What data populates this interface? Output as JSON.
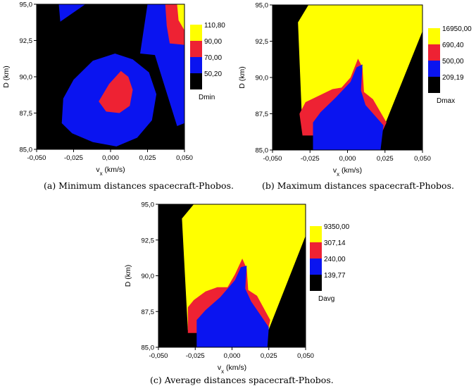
{
  "chart_data": [
    {
      "type": "heatmap",
      "title": "",
      "xlabel": "vx (km/s)",
      "xlabel_main": "v",
      "xlabel_sub": "x",
      "xlabel_unit": " (km/s)",
      "ylabel": "D (km)",
      "xlim": [
        -0.05,
        0.05
      ],
      "ylim": [
        85.0,
        95.0
      ],
      "xticks": [
        "-0,050",
        "-0,025",
        "0,000",
        "0,025",
        "0,050"
      ],
      "yticks": [
        "85,0",
        "87,5",
        "90,0",
        "92,5",
        "95,0"
      ],
      "legend_title": "Dmin",
      "levels": [
        {
          "label": "110,80",
          "color": "#ffff00"
        },
        {
          "label": "90,00",
          "color": "#ee2233"
        },
        {
          "label": "70,00",
          "color": "#0a14f0"
        },
        {
          "label": "50,20",
          "color": "#000000"
        }
      ],
      "regions": [
        {
          "color": "#000000",
          "points": [
            [
              -0.05,
              85
            ],
            [
              0.05,
              85
            ],
            [
              0.05,
              95
            ],
            [
              -0.05,
              95
            ]
          ]
        },
        {
          "color": "#0a14f0",
          "points": [
            [
              -0.034,
              93.8
            ],
            [
              -0.017,
              95
            ],
            [
              -0.035,
              95
            ]
          ]
        },
        {
          "color": "#0a14f0",
          "points": [
            [
              0.025,
              95
            ],
            [
              0.05,
              95
            ],
            [
              0.05,
              86.8
            ],
            [
              0.045,
              86.6
            ],
            [
              0.03,
              91.5
            ],
            [
              0.02,
              91.6
            ]
          ]
        },
        {
          "color": "#ee2233",
          "points": [
            [
              0.037,
              95
            ],
            [
              0.05,
              95
            ],
            [
              0.05,
              92.2
            ],
            [
              0.04,
              92.3
            ],
            [
              0.038,
              93.5
            ]
          ]
        },
        {
          "color": "#ffff00",
          "points": [
            [
              0.045,
              95
            ],
            [
              0.05,
              95
            ],
            [
              0.05,
              93.2
            ],
            [
              0.046,
              93.9
            ]
          ]
        },
        {
          "color": "#0a14f0",
          "points": [
            [
              -0.032,
              88.5
            ],
            [
              -0.033,
              86.8
            ],
            [
              -0.026,
              86.1
            ],
            [
              -0.012,
              85.5
            ],
            [
              0.004,
              85.2
            ],
            [
              0.018,
              85.8
            ],
            [
              0.028,
              87.0
            ],
            [
              0.031,
              88.8
            ],
            [
              0.026,
              90.3
            ],
            [
              0.015,
              91.2
            ],
            [
              0.003,
              91.6
            ],
            [
              -0.012,
              91.1
            ],
            [
              -0.025,
              89.8
            ]
          ]
        },
        {
          "color": "#ee2233",
          "points": [
            [
              -0.008,
              88.3
            ],
            [
              -0.003,
              87.6
            ],
            [
              0.006,
              87.5
            ],
            [
              0.013,
              88.0
            ],
            [
              0.015,
              89.1
            ],
            [
              0.012,
              90.0
            ],
            [
              0.007,
              90.4
            ],
            [
              -0.001,
              89.5
            ]
          ]
        }
      ]
    },
    {
      "type": "heatmap",
      "title": "",
      "xlabel": "vx (km/s)",
      "xlabel_main": "v",
      "xlabel_sub": "x",
      "xlabel_unit": " (km/s)",
      "ylabel": "D (km)",
      "xlim": [
        -0.05,
        0.05
      ],
      "ylim": [
        85.0,
        95.0
      ],
      "xticks": [
        "-0,050",
        "-0,025",
        "0,000",
        "0,025",
        "0,050"
      ],
      "yticks": [
        "85,0",
        "87,5",
        "90,0",
        "92,5",
        "95,0"
      ],
      "legend_title": "Dmax",
      "levels": [
        {
          "label": "16950,00",
          "color": "#ffff00"
        },
        {
          "label": "690,40",
          "color": "#ee2233"
        },
        {
          "label": "500,00",
          "color": "#0a14f0"
        },
        {
          "label": "209,19",
          "color": "#000000"
        }
      ],
      "regions": [
        {
          "color": "#000000",
          "points": [
            [
              -0.05,
              85
            ],
            [
              0.05,
              85
            ],
            [
              0.05,
              95
            ],
            [
              -0.05,
              95
            ]
          ]
        },
        {
          "color": "#ffff00",
          "points": [
            [
              -0.033,
              93.8
            ],
            [
              -0.026,
              95
            ],
            [
              0.05,
              95
            ],
            [
              0.05,
              93.2
            ],
            [
              0.022,
              86.0
            ],
            [
              -0.03,
              86.2
            ]
          ]
        },
        {
          "color": "#ee2233",
          "points": [
            [
              -0.032,
              87.5
            ],
            [
              -0.028,
              88.3
            ],
            [
              -0.018,
              88.8
            ],
            [
              -0.01,
              89.2
            ],
            [
              -0.004,
              89.3
            ],
            [
              0.002,
              90.0
            ],
            [
              0.007,
              91.3
            ],
            [
              0.01,
              90.7
            ],
            [
              0.011,
              89.0
            ],
            [
              0.017,
              88.5
            ],
            [
              0.026,
              86.9
            ],
            [
              0.022,
              86.0
            ],
            [
              -0.03,
              86.0
            ]
          ]
        },
        {
          "color": "#0a14f0",
          "points": [
            [
              -0.023,
              85.0
            ],
            [
              0.022,
              85.0
            ],
            [
              0.024,
              86.7
            ],
            [
              0.012,
              88.1
            ],
            [
              0.009,
              89.1
            ],
            [
              0.01,
              90.9
            ],
            [
              0.006,
              90.7
            ],
            [
              0.002,
              89.7
            ],
            [
              -0.008,
              88.6
            ],
            [
              -0.018,
              87.6
            ],
            [
              -0.023,
              86.9
            ]
          ]
        }
      ]
    },
    {
      "type": "heatmap",
      "title": "",
      "xlabel": "vx (km/s)",
      "xlabel_main": "v",
      "xlabel_sub": "x",
      "xlabel_unit": " (km/s)",
      "ylabel": "D (km)",
      "xlim": [
        -0.05,
        0.05
      ],
      "ylim": [
        85.0,
        95.0
      ],
      "xticks": [
        "-0,050",
        "-0,025",
        "0,000",
        "0,025",
        "0,050"
      ],
      "yticks": [
        "85,0",
        "87,5",
        "90,0",
        "92,5",
        "95,0"
      ],
      "legend_title": "Davg",
      "levels": [
        {
          "label": "9350,00",
          "color": "#ffff00"
        },
        {
          "label": "307,14",
          "color": "#ee2233"
        },
        {
          "label": "240,00",
          "color": "#0a14f0"
        },
        {
          "label": "139,77",
          "color": "#000000"
        }
      ],
      "regions": [
        {
          "color": "#000000",
          "points": [
            [
              -0.05,
              85
            ],
            [
              0.05,
              85
            ],
            [
              0.05,
              95
            ],
            [
              -0.05,
              95
            ]
          ]
        },
        {
          "color": "#ffff00",
          "points": [
            [
              -0.034,
              94.0
            ],
            [
              -0.026,
              95
            ],
            [
              0.05,
              95
            ],
            [
              0.05,
              92.8
            ],
            [
              0.024,
              86.0
            ],
            [
              -0.03,
              86.2
            ]
          ]
        },
        {
          "color": "#ee2233",
          "points": [
            [
              -0.03,
              87.8
            ],
            [
              -0.026,
              88.3
            ],
            [
              -0.018,
              88.9
            ],
            [
              -0.01,
              89.2
            ],
            [
              -0.003,
              89.2
            ],
            [
              0.002,
              90.1
            ],
            [
              0.007,
              91.2
            ],
            [
              0.01,
              90.5
            ],
            [
              0.011,
              89.0
            ],
            [
              0.017,
              88.6
            ],
            [
              0.026,
              86.9
            ],
            [
              0.024,
              86.0
            ],
            [
              -0.03,
              86.0
            ]
          ]
        },
        {
          "color": "#0a14f0",
          "points": [
            [
              -0.024,
              85.0
            ],
            [
              0.024,
              85.0
            ],
            [
              0.025,
              86.4
            ],
            [
              0.013,
              88.2
            ],
            [
              0.009,
              89.1
            ],
            [
              0.01,
              90.7
            ],
            [
              0.006,
              90.6
            ],
            [
              0.002,
              89.7
            ],
            [
              -0.008,
              88.5
            ],
            [
              -0.018,
              87.6
            ],
            [
              -0.024,
              86.9
            ]
          ]
        }
      ]
    }
  ],
  "captions": {
    "a": "(a)  Minimum distances spacecraft-Phobos.",
    "b": "(b)  Maximum distances spacecraft-Phobos.",
    "c": "(c)  Average distances spacecraft-Phobos."
  }
}
